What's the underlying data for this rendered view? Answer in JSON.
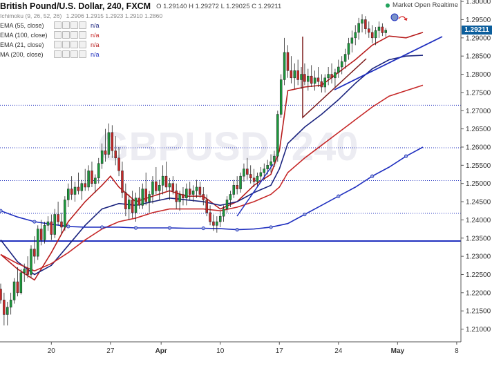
{
  "header": {
    "symbol": "British Pound/U.S. Dollar, 240, FXCM",
    "ohlc": "O 1.29140 H 1.29272 L 1.29025 C 1.29211",
    "status": "Market Open Realtime",
    "status_color": "#23a35d"
  },
  "indicators": {
    "ichimoku": {
      "label": "Ichimoku (9, 26, 52, 26)",
      "values": "1.2906 1.2915 1.2923 1.2910 1.2860"
    },
    "ema55": {
      "label": "EMA (55, close)",
      "value": "n/a",
      "color": "#1a237e"
    },
    "ema100": {
      "label": "EMA (100, close)",
      "value": "n/a",
      "color": "#c62828"
    },
    "ema21": {
      "label": "EMA (21, close)",
      "value": "n/a",
      "color": "#b71c1c"
    },
    "ma200": {
      "label": "MA (200, close)",
      "value": "n/a",
      "color": "#1f2fbf"
    }
  },
  "last_price_tag": "1.29211",
  "watermark": "GBPUSD, 240",
  "chart_data": {
    "type": "candlestick",
    "title": "British Pound/U.S. Dollar, 240, FXCM",
    "y_axis": {
      "ylim": [
        1.2065,
        1.3004
      ],
      "ticks": [
        "1.30000",
        "1.29500",
        "1.29000",
        "1.28500",
        "1.28000",
        "1.27500",
        "1.27000",
        "1.26500",
        "1.26000",
        "1.25500",
        "1.25000",
        "1.24500",
        "1.24000",
        "1.23500",
        "1.23000",
        "1.22500",
        "1.22000",
        "1.21500",
        "1.21000"
      ],
      "last_price": 1.29211
    },
    "x_axis": {
      "ticks": [
        {
          "label": "20",
          "x": 20
        },
        {
          "label": "27",
          "x": 27
        },
        {
          "label": "Apr",
          "x": 33
        },
        {
          "label": "10",
          "x": 40
        },
        {
          "label": "17",
          "x": 47
        },
        {
          "label": "24",
          "x": 54
        },
        {
          "label": "May",
          "x": 61
        },
        {
          "label": "8",
          "x": 68
        }
      ],
      "xlim": [
        14,
        68.5
      ]
    },
    "horizontal_lines": [
      {
        "price": 1.2342,
        "color": "#1f2fbf",
        "style": "solid"
      },
      {
        "price": 1.2715,
        "color": "#1f2fbf",
        "style": "dotted"
      },
      {
        "price": 1.2598,
        "color": "#1f2fbf",
        "style": "dotted"
      },
      {
        "price": 1.2508,
        "color": "#1f2fbf",
        "style": "dotted"
      },
      {
        "price": 1.2418,
        "color": "#1f2fbf",
        "style": "dotted"
      }
    ],
    "series": [
      {
        "name": "EMA (21, close)",
        "color": "#b71c1c",
        "points": [
          [
            14,
            1.2305
          ],
          [
            16,
            1.2265
          ],
          [
            18,
            1.2235
          ],
          [
            20,
            1.231
          ],
          [
            22,
            1.2395
          ],
          [
            24,
            1.245
          ],
          [
            26,
            1.2495
          ],
          [
            27,
            1.252
          ],
          [
            28,
            1.249
          ],
          [
            30,
            1.245
          ],
          [
            32,
            1.2465
          ],
          [
            34,
            1.248
          ],
          [
            36,
            1.2465
          ],
          [
            38,
            1.2465
          ],
          [
            40,
            1.243
          ],
          [
            42,
            1.245
          ],
          [
            44,
            1.2495
          ],
          [
            46,
            1.2525
          ],
          [
            47,
            1.259
          ],
          [
            48,
            1.2755
          ],
          [
            50,
            1.2765
          ],
          [
            52,
            1.277
          ],
          [
            54,
            1.2805
          ],
          [
            56,
            1.284
          ],
          [
            58,
            1.288
          ],
          [
            60,
            1.2905
          ],
          [
            62,
            1.29
          ],
          [
            64,
            1.2915
          ]
        ]
      },
      {
        "name": "EMA (55, close)",
        "color": "#1a237e",
        "points": [
          [
            14,
            1.2345
          ],
          [
            16,
            1.2285
          ],
          [
            18,
            1.225
          ],
          [
            20,
            1.2275
          ],
          [
            22,
            1.233
          ],
          [
            24,
            1.2385
          ],
          [
            26,
            1.243
          ],
          [
            28,
            1.2445
          ],
          [
            30,
            1.244
          ],
          [
            32,
            1.245
          ],
          [
            34,
            1.246
          ],
          [
            36,
            1.2455
          ],
          [
            38,
            1.245
          ],
          [
            40,
            1.244
          ],
          [
            42,
            1.245
          ],
          [
            44,
            1.2475
          ],
          [
            46,
            1.2495
          ],
          [
            47,
            1.254
          ],
          [
            48,
            1.261
          ],
          [
            50,
            1.2655
          ],
          [
            52,
            1.269
          ],
          [
            54,
            1.273
          ],
          [
            56,
            1.2775
          ],
          [
            58,
            1.2815
          ],
          [
            60,
            1.284
          ],
          [
            62,
            1.285
          ],
          [
            64,
            1.2852
          ]
        ]
      },
      {
        "name": "EMA (100, close)",
        "color": "#c62828",
        "points": [
          [
            14,
            1.2305
          ],
          [
            16,
            1.228
          ],
          [
            18,
            1.226
          ],
          [
            20,
            1.228
          ],
          [
            22,
            1.231
          ],
          [
            24,
            1.2345
          ],
          [
            26,
            1.2375
          ],
          [
            28,
            1.2395
          ],
          [
            30,
            1.2405
          ],
          [
            32,
            1.242
          ],
          [
            34,
            1.243
          ],
          [
            36,
            1.243
          ],
          [
            38,
            1.243
          ],
          [
            40,
            1.2425
          ],
          [
            42,
            1.2435
          ],
          [
            44,
            1.245
          ],
          [
            46,
            1.247
          ],
          [
            47,
            1.249
          ],
          [
            48,
            1.253
          ],
          [
            50,
            1.257
          ],
          [
            52,
            1.2605
          ],
          [
            54,
            1.264
          ],
          [
            56,
            1.2675
          ],
          [
            58,
            1.271
          ],
          [
            60,
            1.274
          ],
          [
            62,
            1.2755
          ],
          [
            64,
            1.277
          ]
        ]
      },
      {
        "name": "MA (200, close)",
        "color": "#1f2fbf",
        "points": [
          [
            14,
            1.2425
          ],
          [
            16,
            1.2408
          ],
          [
            18,
            1.2395
          ],
          [
            20,
            1.2388
          ],
          [
            22,
            1.2382
          ],
          [
            24,
            1.238
          ],
          [
            26,
            1.238
          ],
          [
            28,
            1.238
          ],
          [
            30,
            1.2378
          ],
          [
            32,
            1.2378
          ],
          [
            34,
            1.2378
          ],
          [
            36,
            1.2377
          ],
          [
            38,
            1.2377
          ],
          [
            40,
            1.2376
          ],
          [
            42,
            1.2373
          ],
          [
            44,
            1.2375
          ],
          [
            46,
            1.238
          ],
          [
            48,
            1.239
          ],
          [
            50,
            1.2415
          ],
          [
            52,
            1.244
          ],
          [
            54,
            1.2465
          ],
          [
            56,
            1.249
          ],
          [
            58,
            1.252
          ],
          [
            60,
            1.2545
          ],
          [
            62,
            1.2575
          ],
          [
            64,
            1.26
          ]
        ]
      }
    ],
    "candles": [
      [
        14.0,
        1.221,
        1.2225,
        1.217,
        1.218
      ],
      [
        14.4,
        1.218,
        1.22,
        1.211,
        1.214
      ],
      [
        14.8,
        1.214,
        1.2175,
        1.211,
        1.216
      ],
      [
        15.2,
        1.216,
        1.22,
        1.214,
        1.218
      ],
      [
        15.6,
        1.218,
        1.224,
        1.217,
        1.223
      ],
      [
        16.0,
        1.223,
        1.227,
        1.219,
        1.22
      ],
      [
        16.4,
        1.22,
        1.2265,
        1.2195,
        1.2255
      ],
      [
        16.8,
        1.2255,
        1.228,
        1.223,
        1.2265
      ],
      [
        17.2,
        1.2265,
        1.23,
        1.224,
        1.225
      ],
      [
        17.6,
        1.225,
        1.233,
        1.224,
        1.232
      ],
      [
        18.0,
        1.232,
        1.2355,
        1.228,
        1.23
      ],
      [
        18.4,
        1.23,
        1.2385,
        1.229,
        1.2375
      ],
      [
        18.8,
        1.2375,
        1.24,
        1.233,
        1.2345
      ],
      [
        19.2,
        1.2345,
        1.2395,
        1.2335,
        1.2385
      ],
      [
        19.6,
        1.2385,
        1.241,
        1.237,
        1.2395
      ],
      [
        20.0,
        1.2395,
        1.2415,
        1.2345,
        1.236
      ],
      [
        20.4,
        1.236,
        1.243,
        1.235,
        1.2415
      ],
      [
        20.8,
        1.2415,
        1.245,
        1.2385,
        1.2395
      ],
      [
        21.2,
        1.2395,
        1.242,
        1.236,
        1.238
      ],
      [
        21.6,
        1.238,
        1.2465,
        1.237,
        1.2455
      ],
      [
        22.0,
        1.2455,
        1.25,
        1.2435,
        1.2485
      ],
      [
        22.4,
        1.2485,
        1.252,
        1.2455,
        1.247
      ],
      [
        22.8,
        1.247,
        1.2505,
        1.245,
        1.249
      ],
      [
        23.2,
        1.249,
        1.253,
        1.247,
        1.248
      ],
      [
        23.6,
        1.248,
        1.251,
        1.2455,
        1.25
      ],
      [
        24.0,
        1.25,
        1.254,
        1.248,
        1.249
      ],
      [
        24.4,
        1.249,
        1.255,
        1.248,
        1.2535
      ],
      [
        24.8,
        1.2535,
        1.256,
        1.249,
        1.25
      ],
      [
        25.2,
        1.25,
        1.2525,
        1.2475,
        1.2515
      ],
      [
        25.6,
        1.2515,
        1.257,
        1.25,
        1.2555
      ],
      [
        26.0,
        1.2555,
        1.261,
        1.254,
        1.259
      ],
      [
        26.4,
        1.259,
        1.265,
        1.256,
        1.258
      ],
      [
        26.8,
        1.258,
        1.2665,
        1.257,
        1.264
      ],
      [
        27.2,
        1.264,
        1.266,
        1.257,
        1.259
      ],
      [
        27.6,
        1.259,
        1.263,
        1.255,
        1.257
      ],
      [
        28.0,
        1.257,
        1.26,
        1.252,
        1.2535
      ],
      [
        28.4,
        1.2535,
        1.256,
        1.246,
        1.2475
      ],
      [
        28.8,
        1.2475,
        1.25,
        1.241,
        1.243
      ],
      [
        29.2,
        1.243,
        1.247,
        1.24,
        1.2455
      ],
      [
        29.6,
        1.2455,
        1.248,
        1.2405,
        1.242
      ],
      [
        30.0,
        1.242,
        1.2475,
        1.2395,
        1.246
      ],
      [
        30.4,
        1.246,
        1.249,
        1.243,
        1.244
      ],
      [
        30.8,
        1.244,
        1.25,
        1.243,
        1.2485
      ],
      [
        31.2,
        1.2485,
        1.253,
        1.244,
        1.245
      ],
      [
        31.6,
        1.245,
        1.248,
        1.242,
        1.247
      ],
      [
        32.0,
        1.247,
        1.252,
        1.2445,
        1.2505
      ],
      [
        32.4,
        1.2505,
        1.2545,
        1.247,
        1.248
      ],
      [
        32.8,
        1.248,
        1.251,
        1.2455,
        1.2495
      ],
      [
        33.2,
        1.2495,
        1.255,
        1.247,
        1.252
      ],
      [
        33.6,
        1.252,
        1.256,
        1.248,
        1.249
      ],
      [
        34.0,
        1.249,
        1.2515,
        1.2455,
        1.25
      ],
      [
        34.4,
        1.25,
        1.252,
        1.247,
        1.248
      ],
      [
        34.8,
        1.248,
        1.25,
        1.243,
        1.245
      ],
      [
        35.2,
        1.245,
        1.248,
        1.2425,
        1.247
      ],
      [
        35.6,
        1.247,
        1.249,
        1.244,
        1.246
      ],
      [
        36.0,
        1.246,
        1.25,
        1.244,
        1.2485
      ],
      [
        36.4,
        1.2485,
        1.2505,
        1.2455,
        1.247
      ],
      [
        36.8,
        1.247,
        1.2495,
        1.245,
        1.248
      ],
      [
        37.2,
        1.248,
        1.251,
        1.246,
        1.249
      ],
      [
        37.6,
        1.249,
        1.2505,
        1.246,
        1.247
      ],
      [
        38.0,
        1.247,
        1.249,
        1.244,
        1.2455
      ],
      [
        38.4,
        1.2455,
        1.247,
        1.241,
        1.242
      ],
      [
        38.8,
        1.242,
        1.244,
        1.2385,
        1.2395
      ],
      [
        39.2,
        1.2395,
        1.2415,
        1.237,
        1.2385
      ],
      [
        39.6,
        1.2385,
        1.241,
        1.2365,
        1.2395
      ],
      [
        40.0,
        1.2395,
        1.2425,
        1.238,
        1.241
      ],
      [
        40.4,
        1.241,
        1.244,
        1.2395,
        1.243
      ],
      [
        40.8,
        1.243,
        1.2465,
        1.242,
        1.2455
      ],
      [
        41.2,
        1.2455,
        1.248,
        1.2435,
        1.247
      ],
      [
        41.6,
        1.247,
        1.251,
        1.246,
        1.2495
      ],
      [
        42.0,
        1.2495,
        1.252,
        1.247,
        1.2485
      ],
      [
        42.4,
        1.2485,
        1.253,
        1.2475,
        1.252
      ],
      [
        42.8,
        1.252,
        1.2555,
        1.2505,
        1.254
      ],
      [
        43.2,
        1.254,
        1.257,
        1.251,
        1.2525
      ],
      [
        43.6,
        1.2525,
        1.255,
        1.25,
        1.2515
      ],
      [
        44.0,
        1.2515,
        1.254,
        1.249,
        1.2505
      ],
      [
        44.4,
        1.2505,
        1.253,
        1.249,
        1.252
      ],
      [
        44.8,
        1.252,
        1.2545,
        1.2505,
        1.253
      ],
      [
        45.2,
        1.253,
        1.2555,
        1.251,
        1.254
      ],
      [
        45.6,
        1.254,
        1.2565,
        1.2525,
        1.255
      ],
      [
        46.0,
        1.255,
        1.258,
        1.253,
        1.256
      ],
      [
        46.4,
        1.256,
        1.259,
        1.2545,
        1.2575
      ],
      [
        46.8,
        1.2575,
        1.27,
        1.256,
        1.269
      ],
      [
        47.2,
        1.269,
        1.28,
        1.268,
        1.2785
      ],
      [
        47.6,
        1.2785,
        1.29,
        1.277,
        1.286
      ],
      [
        48.0,
        1.286,
        1.288,
        1.279,
        1.281
      ],
      [
        48.4,
        1.281,
        1.285,
        1.2775,
        1.279
      ],
      [
        48.8,
        1.279,
        1.283,
        1.276,
        1.281
      ],
      [
        49.2,
        1.281,
        1.284,
        1.277,
        1.2785
      ],
      [
        49.6,
        1.2785,
        1.282,
        1.276,
        1.28
      ],
      [
        50.0,
        1.28,
        1.283,
        1.277,
        1.278
      ],
      [
        50.4,
        1.278,
        1.2815,
        1.2755,
        1.2795
      ],
      [
        50.8,
        1.2795,
        1.2825,
        1.2765,
        1.2775
      ],
      [
        51.2,
        1.2775,
        1.281,
        1.2755,
        1.279
      ],
      [
        51.6,
        1.279,
        1.282,
        1.2765,
        1.278
      ],
      [
        52.0,
        1.278,
        1.28,
        1.275,
        1.2765
      ],
      [
        52.4,
        1.2765,
        1.28,
        1.275,
        1.279
      ],
      [
        52.8,
        1.279,
        1.282,
        1.277,
        1.28
      ],
      [
        53.2,
        1.28,
        1.283,
        1.2775,
        1.279
      ],
      [
        53.6,
        1.279,
        1.2815,
        1.2765,
        1.2805
      ],
      [
        54.0,
        1.2805,
        1.284,
        1.279,
        1.282
      ],
      [
        54.4,
        1.282,
        1.285,
        1.28,
        1.2835
      ],
      [
        54.8,
        1.2835,
        1.287,
        1.2815,
        1.2855
      ],
      [
        55.2,
        1.2855,
        1.29,
        1.284,
        1.2885
      ],
      [
        55.6,
        1.2885,
        1.292,
        1.286,
        1.29
      ],
      [
        56.0,
        1.29,
        1.2935,
        1.288,
        1.2915
      ],
      [
        56.4,
        1.2915,
        1.2955,
        1.2895,
        1.294
      ],
      [
        56.8,
        1.294,
        1.2965,
        1.2915,
        1.295
      ],
      [
        57.2,
        1.295,
        1.296,
        1.291,
        1.2925
      ],
      [
        57.6,
        1.2925,
        1.2945,
        1.29,
        1.2915
      ],
      [
        58.0,
        1.2915,
        1.2935,
        1.2885,
        1.29
      ],
      [
        58.4,
        1.29,
        1.293,
        1.288,
        1.292
      ],
      [
        58.8,
        1.292,
        1.2945,
        1.29,
        1.293
      ],
      [
        59.2,
        1.293,
        1.294,
        1.2905,
        1.2914
      ],
      [
        59.6,
        1.2914,
        1.2927,
        1.2903,
        1.2921
      ]
    ]
  }
}
